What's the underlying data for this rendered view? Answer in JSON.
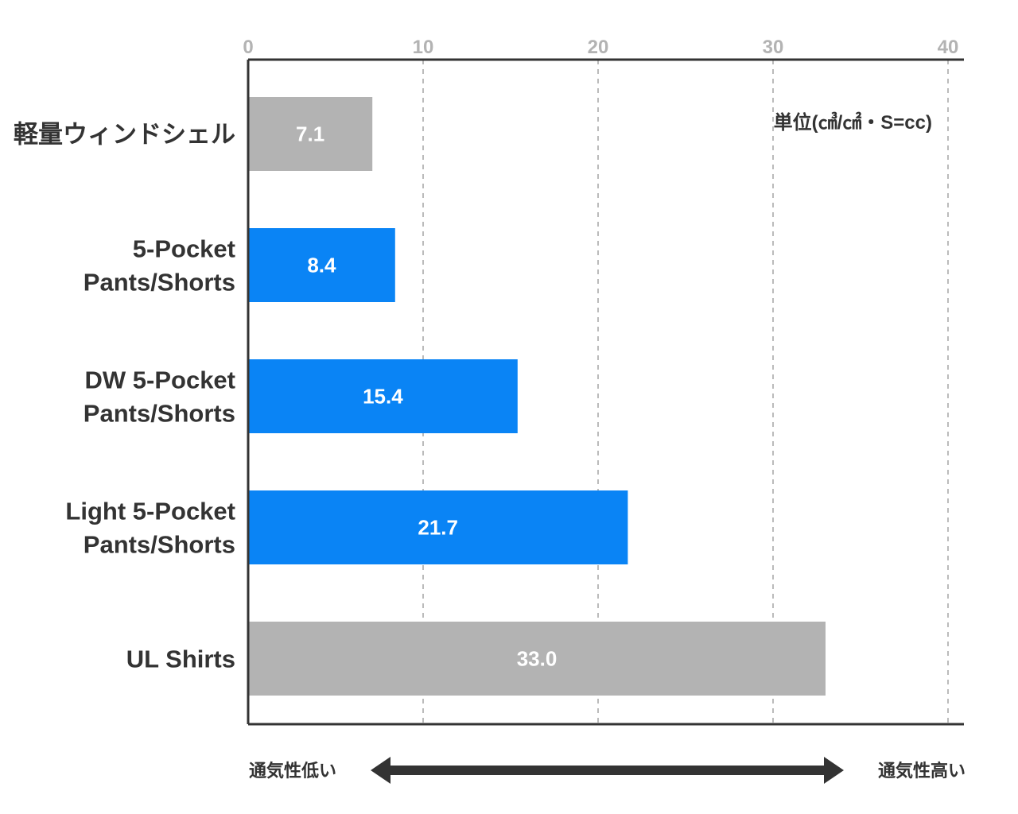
{
  "chart_data": {
    "type": "bar",
    "orientation": "horizontal",
    "categories": [
      [
        "軽量ウィンドシェル"
      ],
      [
        "5-Pocket",
        "Pants/Shorts"
      ],
      [
        "DW 5-Pocket",
        "Pants/Shorts"
      ],
      [
        "Light 5-Pocket",
        "Pants/Shorts"
      ],
      [
        "UL Shirts"
      ]
    ],
    "values": [
      7.1,
      8.4,
      15.4,
      21.7,
      33.0
    ],
    "value_labels": [
      "7.1",
      "8.4",
      "15.4",
      "21.7",
      "33.0"
    ],
    "bar_colors": [
      "#b3b3b3",
      "#0a84f5",
      "#0a84f5",
      "#0a84f5",
      "#b3b3b3"
    ],
    "xlim": [
      0,
      40
    ],
    "xticks": [
      0,
      10,
      20,
      30,
      40
    ],
    "tick_labels": [
      "0",
      "10",
      "20",
      "30",
      "40"
    ],
    "x_axis_position": "top",
    "grid": "vertical-dashed",
    "unit_label": "単位(㎤/㎠・S=cc)",
    "arrow_left_label": "通気性低い",
    "arrow_right_label": "通気性高い",
    "colors": {
      "text": "#333333",
      "tick": "#b3b3b3",
      "grid": "#bbbbbb",
      "axis": "#333333",
      "arrow": "#333333"
    }
  }
}
